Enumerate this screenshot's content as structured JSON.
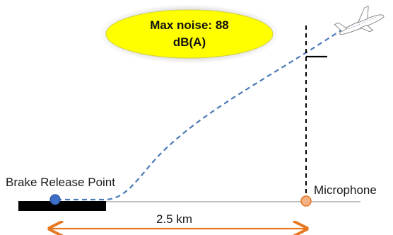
{
  "callout": {
    "line1": "Max noise: 88",
    "line2": "dB(A)",
    "fill_color": "#ffff00"
  },
  "labels": {
    "brake_release": "Brake Release Point",
    "microphone": "Microphone",
    "distance": "2.5 km"
  },
  "icons": {
    "aircraft": "aircraft-icon",
    "brake_point": "brake-release-marker-icon",
    "microphone": "microphone-marker-icon"
  },
  "colors": {
    "flight_path": "#4a7ab8",
    "brake_marker": "#3d6fc8",
    "microphone_marker": "#f4b183",
    "distance_arrow": "#e87722",
    "runway": "#000000"
  }
}
